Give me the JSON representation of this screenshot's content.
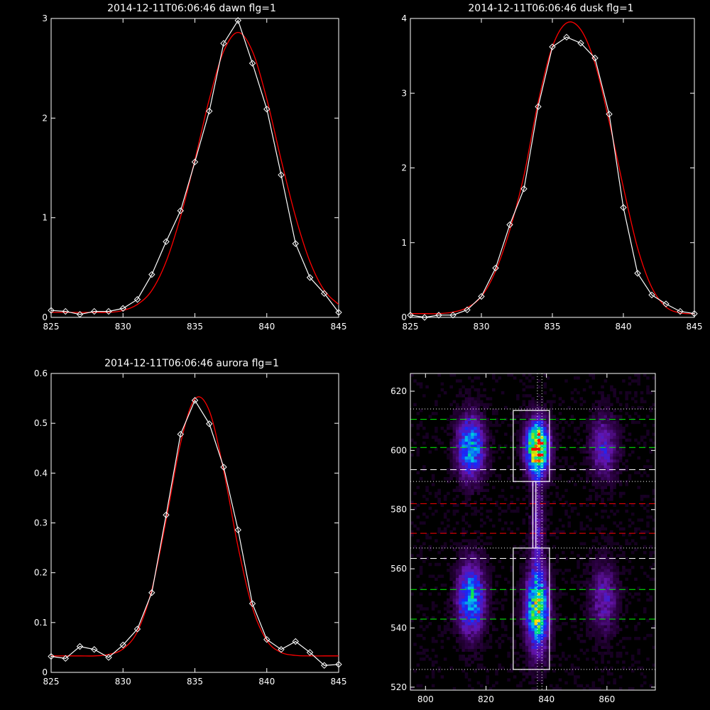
{
  "colors": {
    "background": "#000000",
    "axis": "#ffffff",
    "data_line": "#ffffff",
    "fit_line": "#ff0000",
    "dash_green": "#00ff00",
    "dash_white": "#ffffff",
    "dash_red": "#ff0000"
  },
  "chart_data": [
    {
      "type": "line",
      "title": "2014-12-11T06:06:46 dawn flg=1",
      "xlim": [
        825,
        845
      ],
      "ylim": [
        0,
        3
      ],
      "xticks": [
        825,
        830,
        835,
        840,
        845
      ],
      "yticks": [
        0,
        1,
        2,
        3
      ],
      "grid": false,
      "series": [
        {
          "role": "data",
          "marker": "diamond",
          "x": [
            825,
            826,
            827,
            828,
            829,
            830,
            831,
            832,
            833,
            834,
            835,
            836,
            837,
            838,
            839,
            840,
            841,
            842,
            843,
            844,
            845
          ],
          "y": [
            0.07,
            0.06,
            0.03,
            0.06,
            0.06,
            0.09,
            0.18,
            0.43,
            0.76,
            1.07,
            1.56,
            2.07,
            2.75,
            2.98,
            2.55,
            2.09,
            1.43,
            0.74,
            0.4,
            0.24,
            0.05
          ]
        },
        {
          "role": "fit",
          "x": [
            825,
            826,
            827,
            828,
            829,
            830,
            831,
            832,
            833,
            834,
            835,
            836,
            837,
            838,
            839,
            840,
            841,
            842,
            843,
            844,
            845
          ],
          "y": [
            0.05,
            0.05,
            0.05,
            0.05,
            0.05,
            0.07,
            0.13,
            0.27,
            0.56,
            1.01,
            1.58,
            2.19,
            2.67,
            2.86,
            2.67,
            2.19,
            1.58,
            1.01,
            0.56,
            0.27,
            0.13
          ]
        }
      ]
    },
    {
      "type": "line",
      "title": "2014-12-11T06:06:46 dusk flg=1",
      "xlim": [
        825,
        845
      ],
      "ylim": [
        0,
        4
      ],
      "xticks": [
        825,
        830,
        835,
        840,
        845
      ],
      "yticks": [
        0,
        1,
        2,
        3,
        4
      ],
      "grid": false,
      "series": [
        {
          "role": "data",
          "marker": "diamond",
          "x": [
            825,
            826,
            827,
            828,
            829,
            830,
            831,
            832,
            833,
            834,
            835,
            836,
            837,
            838,
            839,
            840,
            841,
            842,
            843,
            844,
            845
          ],
          "y": [
            0.03,
            0.0,
            0.03,
            0.03,
            0.1,
            0.28,
            0.66,
            1.24,
            1.72,
            2.82,
            3.62,
            3.75,
            3.67,
            3.47,
            2.72,
            1.47,
            0.59,
            0.3,
            0.18,
            0.08,
            0.05
          ]
        },
        {
          "role": "fit",
          "x": [
            825,
            826,
            827,
            828,
            829,
            830,
            831,
            832,
            833,
            834,
            835,
            836,
            837,
            838,
            839,
            840,
            841,
            842,
            843,
            844,
            845
          ],
          "y": [
            0.05,
            0.05,
            0.05,
            0.07,
            0.13,
            0.28,
            0.62,
            1.17,
            1.9,
            2.88,
            3.62,
            3.94,
            3.85,
            3.4,
            2.62,
            1.74,
            0.93,
            0.4,
            0.14,
            0.06,
            0.05
          ]
        }
      ]
    },
    {
      "type": "line",
      "title": "2014-12-11T06:06:46 aurora flg=1",
      "xlim": [
        825,
        845
      ],
      "ylim": [
        0,
        0.6
      ],
      "xticks": [
        825,
        830,
        835,
        840,
        845
      ],
      "yticks": [
        0.0,
        0.1,
        0.2,
        0.3,
        0.4,
        0.5,
        0.6
      ],
      "grid": false,
      "series": [
        {
          "role": "data",
          "marker": "diamond",
          "x": [
            825,
            826,
            827,
            828,
            829,
            830,
            831,
            832,
            833,
            834,
            835,
            836,
            837,
            838,
            839,
            840,
            841,
            842,
            843,
            844,
            845
          ],
          "y": [
            0.032,
            0.028,
            0.052,
            0.046,
            0.03,
            0.055,
            0.087,
            0.16,
            0.316,
            0.478,
            0.546,
            0.499,
            0.412,
            0.286,
            0.138,
            0.066,
            0.046,
            0.062,
            0.04,
            0.014,
            0.016
          ]
        },
        {
          "role": "fit",
          "x": [
            825,
            826,
            827,
            828,
            829,
            830,
            831,
            832,
            833,
            834,
            835,
            836,
            837,
            838,
            839,
            840,
            841,
            842,
            843,
            844,
            845
          ],
          "y": [
            0.033,
            0.033,
            0.033,
            0.033,
            0.036,
            0.047,
            0.082,
            0.166,
            0.306,
            0.46,
            0.549,
            0.525,
            0.405,
            0.252,
            0.13,
            0.064,
            0.04,
            0.034,
            0.033,
            0.033,
            0.033
          ]
        }
      ]
    },
    {
      "type": "heatmap",
      "title": "",
      "xlim": [
        795,
        876
      ],
      "ylim": [
        519,
        626
      ],
      "xticks": [
        800,
        820,
        840,
        860
      ],
      "yticks": [
        520,
        540,
        560,
        580,
        600,
        620
      ],
      "grid": false,
      "colormap": "rainbow-on-black",
      "blobs": [
        {
          "x": 815,
          "y": 601,
          "sx": 3.0,
          "sy": 7.0,
          "amp": 0.55
        },
        {
          "x": 815,
          "y": 550,
          "sx": 3.0,
          "sy": 8.0,
          "amp": 0.55
        },
        {
          "x": 837,
          "y": 601,
          "sx": 2.5,
          "sy": 6.0,
          "amp": 0.95
        },
        {
          "x": 837,
          "y": 546,
          "sx": 2.5,
          "sy": 9.0,
          "amp": 0.75
        },
        {
          "x": 859,
          "y": 601,
          "sx": 3.0,
          "sy": 7.0,
          "amp": 0.28
        },
        {
          "x": 859,
          "y": 550,
          "sx": 3.0,
          "sy": 8.0,
          "amp": 0.25
        },
        {
          "x": 837,
          "y": 575,
          "sx": 1.5,
          "sy": 12.0,
          "amp": 0.22
        }
      ],
      "boxes": [
        {
          "x0": 829,
          "x1": 841,
          "y0": 589.5,
          "y1": 613.5
        },
        {
          "x0": 829,
          "x1": 841,
          "y0": 526,
          "y1": 567
        },
        {
          "x0": 835.5,
          "x1": 836.5,
          "y0": 567,
          "y1": 589.5
        }
      ],
      "hlines": [
        {
          "y": 610.5,
          "style": "dashed",
          "color": "#00ff00"
        },
        {
          "y": 601,
          "style": "dashed",
          "color": "#00ff00"
        },
        {
          "y": 593.5,
          "style": "dashed",
          "color": "#ffffff"
        },
        {
          "y": 582,
          "style": "dashed",
          "color": "#ff0000"
        },
        {
          "y": 572,
          "style": "dashed",
          "color": "#ff0000"
        },
        {
          "y": 563.5,
          "style": "dashed",
          "color": "#ffffff"
        },
        {
          "y": 553,
          "style": "dashed",
          "color": "#00ff00"
        },
        {
          "y": 543,
          "style": "dashed",
          "color": "#00ff00"
        },
        {
          "y": 614,
          "style": "dotted",
          "color": "#ffffff"
        },
        {
          "y": 589.5,
          "style": "dotted",
          "color": "#ffffff"
        },
        {
          "y": 567,
          "style": "dotted",
          "color": "#ffffff"
        },
        {
          "y": 526,
          "style": "dotted",
          "color": "#ffffff"
        }
      ],
      "vlines": [
        {
          "x": 837,
          "style": "dotted",
          "color": "#ffffff"
        },
        {
          "x": 838.5,
          "style": "dotted",
          "color": "#ffffff"
        }
      ]
    }
  ]
}
